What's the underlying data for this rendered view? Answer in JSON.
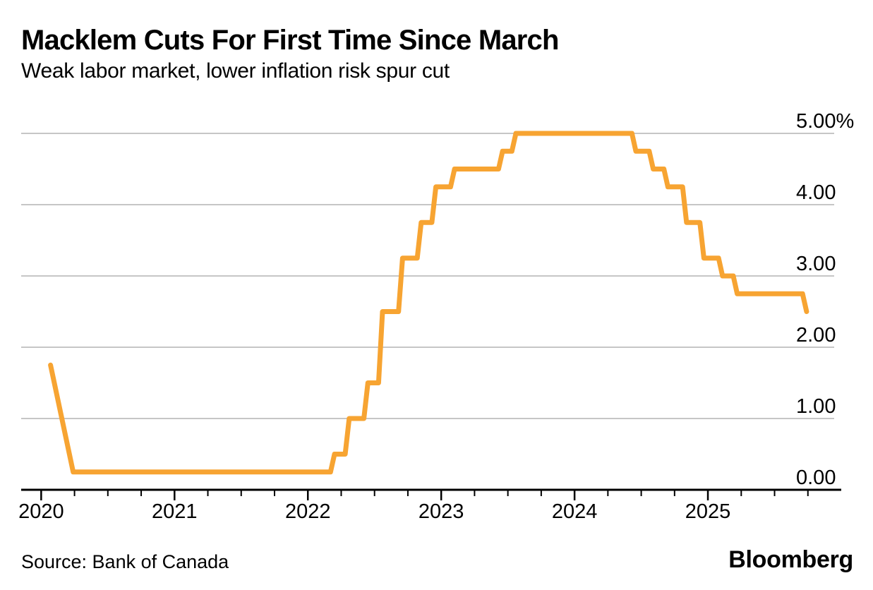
{
  "header": {
    "title": "Macklem Cuts For First Time Since March",
    "subtitle": "Weak labor market, lower inflation risk spur cut"
  },
  "footer": {
    "source": "Source: Bank of Canada",
    "brand": "Bloomberg"
  },
  "chart_data": {
    "type": "line",
    "title": "Macklem Cuts For First Time Since March",
    "subtitle": "Weak labor market, lower inflation risk spur cut",
    "xlabel": "",
    "ylabel": "",
    "x_ticks": [
      {
        "value": 2020,
        "label": "2020"
      },
      {
        "value": 2021,
        "label": "2021"
      },
      {
        "value": 2022,
        "label": "2022"
      },
      {
        "value": 2023,
        "label": "2023"
      },
      {
        "value": 2024,
        "label": "2024"
      },
      {
        "value": 2025,
        "label": "2025"
      }
    ],
    "x_minor_ticks": [
      2020.25,
      2020.5,
      2020.75,
      2021.25,
      2021.5,
      2021.75,
      2022.25,
      2022.5,
      2022.75,
      2023.25,
      2023.5,
      2023.75,
      2024.25,
      2024.5,
      2024.75,
      2025.25,
      2025.5,
      2025.75
    ],
    "y_ticks": [
      {
        "value": 5,
        "label": "5.00%"
      },
      {
        "value": 4,
        "label": "4.00"
      },
      {
        "value": 3,
        "label": "3.00"
      },
      {
        "value": 2,
        "label": "2.00"
      },
      {
        "value": 1,
        "label": "1.00"
      },
      {
        "value": 0,
        "label": "0.00"
      }
    ],
    "series": [
      {
        "color": "#F7A432",
        "points": [
          [
            2020.07,
            1.75
          ],
          [
            2020.24,
            0.25
          ],
          [
            2022.17,
            0.25
          ],
          [
            2022.2,
            0.5
          ],
          [
            2022.28,
            0.5
          ],
          [
            2022.31,
            1.0
          ],
          [
            2022.42,
            1.0
          ],
          [
            2022.45,
            1.5
          ],
          [
            2022.53,
            1.5
          ],
          [
            2022.56,
            2.5
          ],
          [
            2022.68,
            2.5
          ],
          [
            2022.71,
            3.25
          ],
          [
            2022.82,
            3.25
          ],
          [
            2022.85,
            3.75
          ],
          [
            2022.93,
            3.75
          ],
          [
            2022.96,
            4.25
          ],
          [
            2023.07,
            4.25
          ],
          [
            2023.1,
            4.5
          ],
          [
            2023.43,
            4.5
          ],
          [
            2023.46,
            4.75
          ],
          [
            2023.53,
            4.75
          ],
          [
            2023.56,
            5.0
          ],
          [
            2024.43,
            5.0
          ],
          [
            2024.46,
            4.75
          ],
          [
            2024.56,
            4.75
          ],
          [
            2024.59,
            4.5
          ],
          [
            2024.67,
            4.5
          ],
          [
            2024.7,
            4.25
          ],
          [
            2024.81,
            4.25
          ],
          [
            2024.84,
            3.75
          ],
          [
            2024.94,
            3.75
          ],
          [
            2024.97,
            3.25
          ],
          [
            2025.08,
            3.25
          ],
          [
            2025.11,
            3.0
          ],
          [
            2025.19,
            3.0
          ],
          [
            2025.22,
            2.75
          ],
          [
            2025.71,
            2.75
          ],
          [
            2025.74,
            2.5
          ]
        ]
      }
    ],
    "layout": {
      "x_range": [
        2019.85,
        2026.0
      ],
      "y_range": [
        0,
        5
      ],
      "grid": "horizontal",
      "grid_color": "#C6C6C6",
      "axis_color": "#000000",
      "text_color": "#000000",
      "legend": "none",
      "y_axis_side": "right"
    }
  }
}
